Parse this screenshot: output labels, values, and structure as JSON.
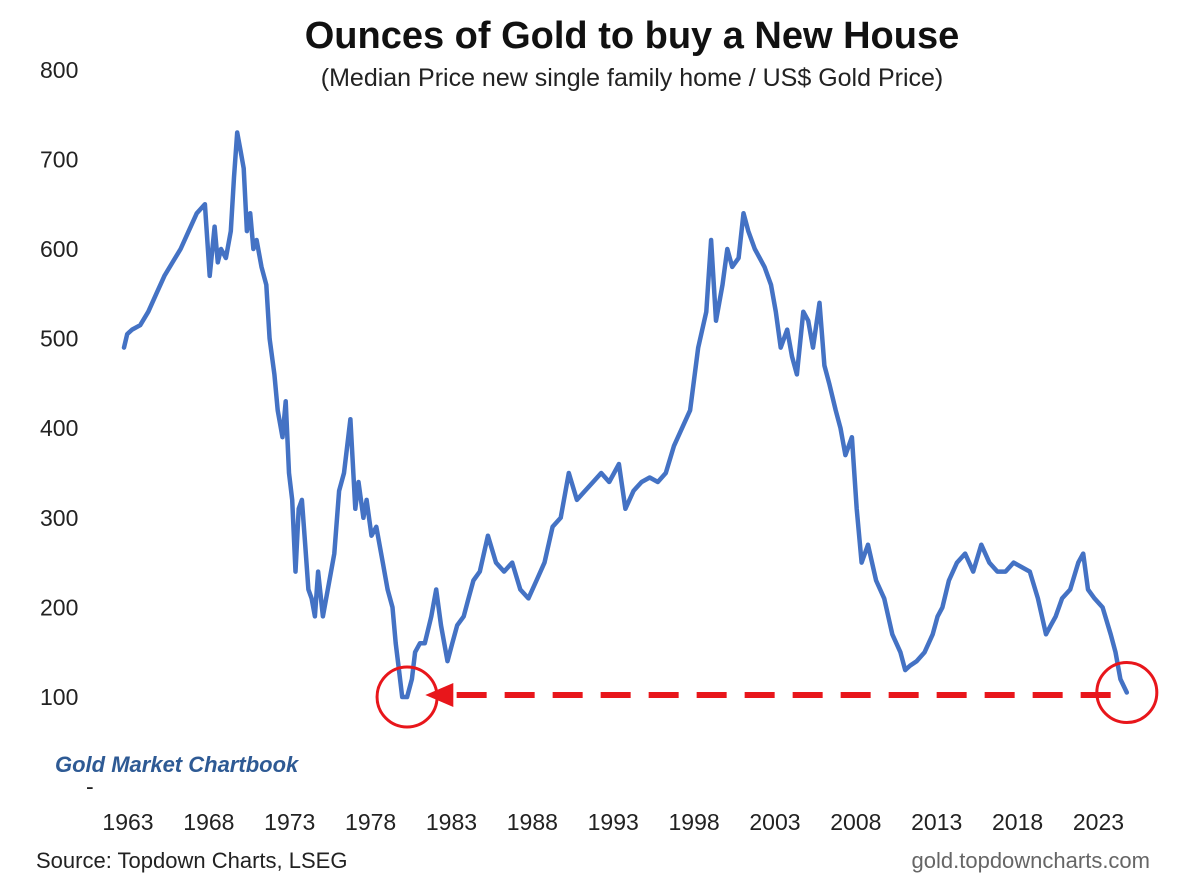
{
  "chart_data": {
    "type": "line",
    "title": "Ounces of Gold to buy a New House",
    "subtitle": "(Median Price new single family home / US$ Gold Price)",
    "xlabel": "",
    "ylabel": "",
    "ylim": [
      0,
      800
    ],
    "xlim": [
      1963,
      2026
    ],
    "y_ticks": [
      "800",
      "700",
      "600",
      "500",
      "400",
      "300",
      "200",
      "100",
      "-"
    ],
    "x_ticks": [
      "1963",
      "1968",
      "1973",
      "1978",
      "1983",
      "1988",
      "1993",
      "1998",
      "2003",
      "2008",
      "2013",
      "2018",
      "2023"
    ],
    "grid": false,
    "series_color": "#4472c4",
    "annotation_color": "#e8161b",
    "series": [
      {
        "x": [
          1963,
          1963.2,
          1963.5,
          1964,
          1964.5,
          1965,
          1965.5,
          1966,
          1966.5,
          1967,
          1967.5,
          1968,
          1968.3,
          1968.6,
          1968.8,
          1969,
          1969.3,
          1969.6,
          1969.8,
          1970,
          1970.2,
          1970.4,
          1970.6,
          1970.8,
          1971,
          1971.2,
          1971.5,
          1971.8,
          1972,
          1972.3,
          1972.5,
          1972.8,
          1973,
          1973.2,
          1973.4,
          1973.6,
          1973.8,
          1974,
          1974.2,
          1974.4,
          1974.6,
          1974.8,
          1975,
          1975.3,
          1975.6,
          1976,
          1976.3,
          1976.6,
          1977,
          1977.3,
          1977.5,
          1977.8,
          1978,
          1978.3,
          1978.6,
          1979,
          1979.3,
          1979.6,
          1979.8,
          1980,
          1980.2,
          1980.5,
          1980.8,
          1981,
          1981.3,
          1981.6,
          1982,
          1982.3,
          1982.6,
          1983,
          1983.3,
          1983.6,
          1984,
          1984.3,
          1984.6,
          1985,
          1985.5,
          1986,
          1986.5,
          1987,
          1987.5,
          1988,
          1988.5,
          1989,
          1989.5,
          1990,
          1990.5,
          1991,
          1991.5,
          1992,
          1992.5,
          1993,
          1993.3,
          1993.6,
          1994,
          1994.5,
          1995,
          1995.5,
          1996,
          1996.5,
          1997,
          1997.5,
          1998,
          1998.5,
          1999,
          1999.3,
          1999.6,
          2000,
          2000.3,
          2000.6,
          2001,
          2001.3,
          2001.6,
          2002,
          2002.3,
          2002.6,
          2003,
          2003.3,
          2003.6,
          2004,
          2004.3,
          2004.6,
          2005,
          2005.3,
          2005.6,
          2006,
          2006.3,
          2006.6,
          2007,
          2007.3,
          2007.6,
          2008,
          2008.3,
          2008.6,
          2009,
          2009.5,
          2010,
          2010.5,
          2011,
          2011.3,
          2011.6,
          2012,
          2012.5,
          2013,
          2013.3,
          2013.6,
          2014,
          2014.5,
          2015,
          2015.5,
          2016,
          2016.5,
          2017,
          2017.5,
          2018,
          2018.5,
          2019,
          2019.5,
          2020,
          2020.3,
          2020.6,
          2021,
          2021.5,
          2022,
          2022.3,
          2022.6,
          2023,
          2023.5,
          2024,
          2024.3,
          2024.6,
          2025
        ],
        "y": [
          490,
          505,
          510,
          515,
          530,
          550,
          570,
          585,
          600,
          620,
          640,
          650,
          570,
          625,
          585,
          600,
          590,
          620,
          680,
          730,
          710,
          690,
          620,
          640,
          600,
          610,
          580,
          560,
          500,
          460,
          420,
          390,
          430,
          350,
          320,
          240,
          310,
          320,
          270,
          220,
          210,
          190,
          240,
          190,
          220,
          260,
          330,
          350,
          410,
          310,
          340,
          300,
          320,
          280,
          290,
          250,
          220,
          200,
          160,
          130,
          100,
          100,
          120,
          150,
          160,
          160,
          190,
          220,
          180,
          140,
          160,
          180,
          190,
          210,
          230,
          240,
          280,
          250,
          240,
          250,
          220,
          210,
          230,
          250,
          290,
          300,
          350,
          320,
          330,
          340,
          350,
          340,
          350,
          360,
          310,
          330,
          340,
          345,
          340,
          350,
          380,
          400,
          420,
          490,
          530,
          610,
          520,
          560,
          600,
          580,
          590,
          640,
          620,
          600,
          590,
          580,
          560,
          530,
          490,
          510,
          480,
          460,
          530,
          520,
          490,
          540,
          470,
          450,
          420,
          400,
          370,
          390,
          310,
          250,
          270,
          230,
          210,
          170,
          150,
          130,
          135,
          140,
          150,
          170,
          190,
          200,
          230,
          250,
          260,
          240,
          270,
          250,
          240,
          240,
          250,
          245,
          240,
          210,
          170,
          180,
          190,
          210,
          220,
          250,
          260,
          220,
          210,
          200,
          170,
          150,
          120,
          105
        ]
      }
    ],
    "annotations": {
      "circle_1_year": 1980.5,
      "circle_1_value": 100,
      "circle_2_year": 2025,
      "circle_2_value": 105,
      "arrow_from_year": 2024,
      "arrow_to_year": 1982,
      "arrow_value": 100
    }
  },
  "labels": {
    "brand": "Gold Market Chartbook",
    "source": "Source: Topdown Charts, LSEG",
    "website": "gold.topdowncharts.com"
  }
}
